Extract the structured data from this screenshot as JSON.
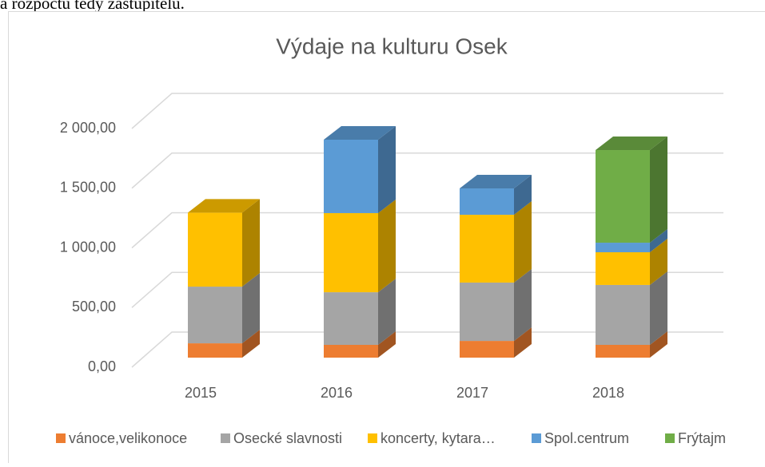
{
  "page_text": "a rozpočtu tedy zastupitelů.",
  "chart_data": {
    "type": "bar",
    "stacked": true,
    "three_d": true,
    "title": "Výdaje na kulturu Osek",
    "categories": [
      "2015",
      "2016",
      "2017",
      "2018"
    ],
    "series": [
      {
        "name": "vánoce,velikonoce",
        "color": "#ed7d31",
        "values": [
          120,
          107,
          140,
          107
        ]
      },
      {
        "name": "Osecké slavnosti",
        "color": "#a5a5a5",
        "values": [
          475,
          441,
          489,
          502
        ]
      },
      {
        "name": "koncerty, kytara…",
        "color": "#ffc000",
        "values": [
          620,
          663,
          568,
          274
        ]
      },
      {
        "name": "Spol.centrum",
        "color": "#5b9bd5",
        "values": [
          0,
          615,
          221,
          80
        ]
      },
      {
        "name": "Frýtajm",
        "color": "#70ad47",
        "values": [
          0,
          0,
          0,
          776
        ]
      }
    ],
    "ylim": [
      0,
      2000
    ],
    "yticks": [
      {
        "value": 0,
        "label": "0,00"
      },
      {
        "value": 500,
        "label": "500,00"
      },
      {
        "value": 1000,
        "label": "1 000,00"
      },
      {
        "value": 1500,
        "label": "1 500,00"
      },
      {
        "value": 2000,
        "label": "2 000,00"
      }
    ],
    "grid": true,
    "legend": "bottom"
  }
}
